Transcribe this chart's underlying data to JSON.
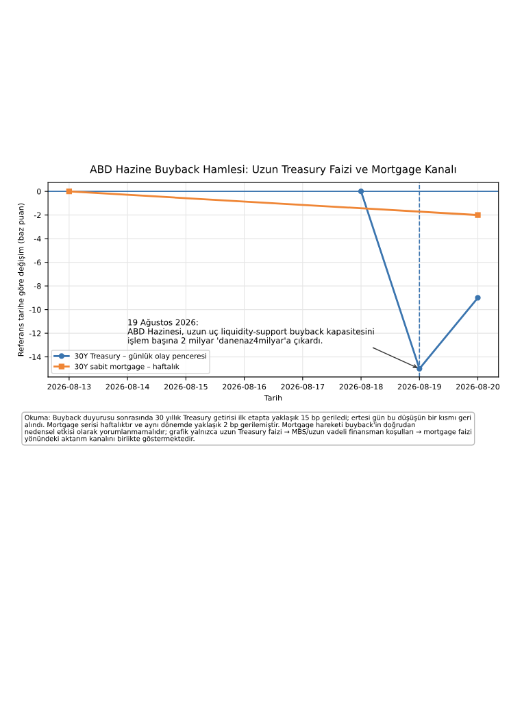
{
  "chart_data": {
    "type": "line",
    "title": "ABD Hazine Buyback Hamlesi: Uzun Treasury Faizi ve Mortgage Kanalı",
    "xlabel": "Tarih",
    "ylabel": "Referans tarihe göre değişim (baz puan)",
    "series": [
      {
        "name": "30Y Treasury – günlük olay penceresi",
        "color": "#3b75af",
        "marker": "circle",
        "x": [
          "2026-08-18",
          "2026-08-19",
          "2026-08-20"
        ],
        "values": [
          0,
          -15,
          -9
        ]
      },
      {
        "name": "30Y sabit mortgage – haftalık",
        "color": "#ef8636",
        "marker": "square",
        "x": [
          "2026-08-13",
          "2026-08-20"
        ],
        "values": [
          0,
          -2
        ]
      }
    ],
    "xlim": [
      "2026-08-12T15:20",
      "2026-08-20T08:30"
    ],
    "ylim": [
      -15.7,
      0.75
    ],
    "xticks": [
      "2026-08-13",
      "2026-08-14",
      "2026-08-15",
      "2026-08-16",
      "2026-08-17",
      "2026-08-18",
      "2026-08-19",
      "2026-08-20"
    ],
    "yticks": [
      0,
      -2,
      -4,
      -6,
      -8,
      -10,
      -12,
      -14
    ],
    "ref_lines": [
      {
        "axis": "y",
        "value": 0,
        "color": "#3b75af",
        "line_style": "solid"
      },
      {
        "axis": "x",
        "value": "2026-08-19",
        "color": "#3b75af",
        "line_style": "dashed"
      }
    ],
    "annotations": [
      {
        "text": "19 Ağustos 2026:\nABD Hazinesi, uzun uç liquidity-support buyback kapasitesini\nişlem başına 2 milyar 'danenaz4milyar'a çıkardı.",
        "x": "2026-08-19",
        "y": -15
      },
      "Okuma: Buyback duyurusu sonrasında 30 yıllık Treasury getirisi ilk etapta yaklaşık 15 bp geriledi; ertesi gün bu düşüşün bir kısmı geri\nalındı. Mortgage serisi haftalıktır ve aynı dönemde yaklaşık 2 bp gerilemiştir. Mortgage hareketi buyback'in doğrudan\nnedensel etkisi olarak yorumlanmamalıdır; grafik yalnızca uzun Treasury faizi → MBS/uzun vadeli finansman koşulları → mortgage faizi\nyönündeki aktarım kanalını birlikte göstermektedir."
    ],
    "grid": true,
    "legend": "lower left",
    "line_style": "solid"
  }
}
